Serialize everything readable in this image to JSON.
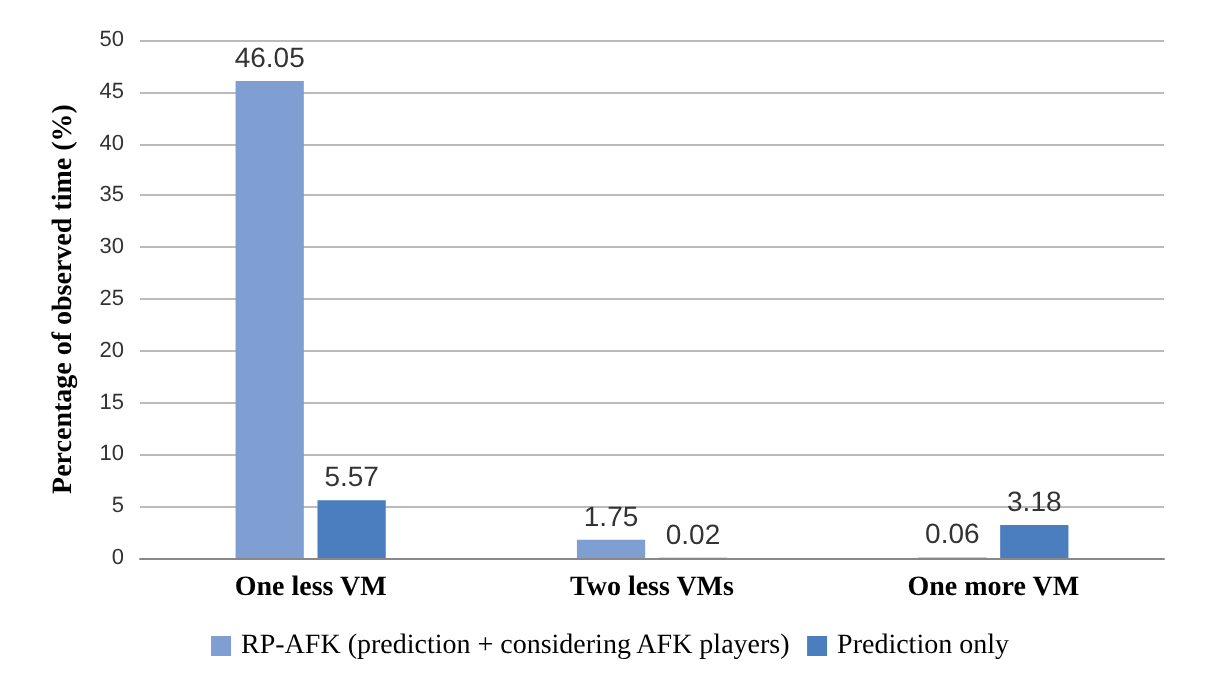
{
  "chart_data": {
    "type": "bar",
    "ylabel": "Percentage of observed time (%)",
    "categories": [
      "One less VM",
      "Two less VMs",
      "One more VM"
    ],
    "series": [
      {
        "name": "RP-AFK (prediction + considering AFK players)",
        "color": "#7f9fd3",
        "values": [
          46.05,
          1.75,
          0.06
        ]
      },
      {
        "name": "Prediction only",
        "color": "#4a7ebf",
        "values": [
          5.57,
          0.02,
          3.18
        ]
      }
    ],
    "ylim": [
      0,
      50
    ],
    "yticks": [
      0,
      5,
      10,
      15,
      20,
      25,
      30,
      35,
      40,
      45,
      50
    ],
    "grid": "y",
    "legend": "bottom",
    "data_labels": true
  }
}
